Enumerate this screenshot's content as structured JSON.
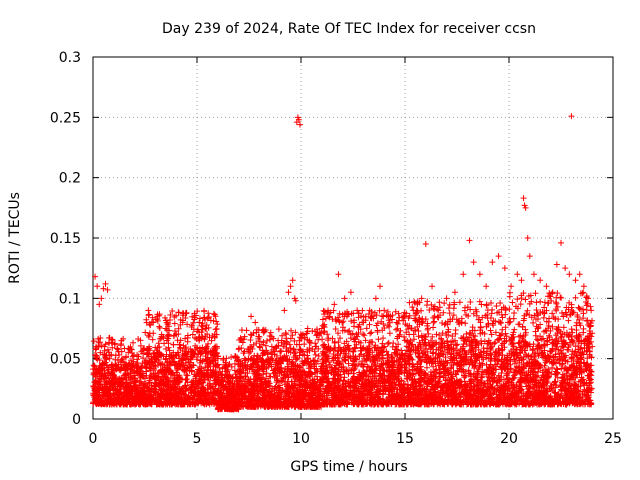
{
  "chart_data": {
    "type": "scatter",
    "title": "Day 239 of 2024, Rate Of TEC Index for receiver ccsn",
    "xlabel": "GPS time / hours",
    "ylabel": "ROTI / TECUs",
    "xlim": [
      0,
      25
    ],
    "ylim": [
      0,
      0.3
    ],
    "x_ticks": [
      "0",
      "5",
      "10",
      "15",
      "20",
      "25"
    ],
    "y_ticks": [
      "0",
      "0.05",
      "0.1",
      "0.15",
      "0.2",
      "0.25",
      "0.3"
    ],
    "grid": true,
    "legend": "none",
    "marker": "plus",
    "color": "#ff0000",
    "series": [
      {
        "points": [
          [
            0.1,
            0.118
          ],
          [
            0.2,
            0.11
          ],
          [
            0.3,
            0.095
          ],
          [
            0.4,
            0.1
          ],
          [
            0.5,
            0.108
          ],
          [
            0.6,
            0.112
          ],
          [
            0.7,
            0.107
          ],
          [
            0.15,
            0.06
          ],
          [
            0.35,
            0.055
          ],
          [
            0.55,
            0.06
          ],
          [
            0.8,
            0.05
          ],
          [
            1.2,
            0.042
          ],
          [
            1.6,
            0.045
          ],
          [
            2.0,
            0.04
          ],
          [
            2.4,
            0.038
          ],
          [
            2.7,
            0.06
          ],
          [
            2.9,
            0.08
          ],
          [
            3.1,
            0.085
          ],
          [
            3.3,
            0.07
          ],
          [
            3.5,
            0.075
          ],
          [
            3.7,
            0.082
          ],
          [
            4.0,
            0.07
          ],
          [
            4.2,
            0.078
          ],
          [
            4.5,
            0.088
          ],
          [
            4.8,
            0.07
          ],
          [
            5.1,
            0.065
          ],
          [
            5.4,
            0.075
          ],
          [
            5.7,
            0.065
          ],
          [
            6.0,
            0.05
          ],
          [
            6.3,
            0.045
          ],
          [
            6.6,
            0.035
          ],
          [
            7.0,
            0.045
          ],
          [
            7.3,
            0.05
          ],
          [
            7.6,
            0.085
          ],
          [
            7.8,
            0.08
          ],
          [
            8.0,
            0.06
          ],
          [
            8.3,
            0.055
          ],
          [
            8.6,
            0.06
          ],
          [
            8.9,
            0.065
          ],
          [
            9.2,
            0.09
          ],
          [
            9.4,
            0.105
          ],
          [
            9.5,
            0.11
          ],
          [
            9.6,
            0.115
          ],
          [
            9.7,
            0.1
          ],
          [
            9.75,
            0.098
          ],
          [
            9.8,
            0.246
          ],
          [
            9.85,
            0.25
          ],
          [
            9.9,
            0.248
          ],
          [
            9.95,
            0.244
          ],
          [
            10.1,
            0.07
          ],
          [
            10.4,
            0.065
          ],
          [
            10.7,
            0.06
          ],
          [
            11.0,
            0.075
          ],
          [
            11.3,
            0.09
          ],
          [
            11.6,
            0.095
          ],
          [
            11.8,
            0.12
          ],
          [
            12.1,
            0.1
          ],
          [
            12.4,
            0.105
          ],
          [
            12.7,
            0.09
          ],
          [
            13.0,
            0.08
          ],
          [
            13.3,
            0.09
          ],
          [
            13.6,
            0.1
          ],
          [
            13.8,
            0.11
          ],
          [
            14.0,
            0.09
          ],
          [
            14.3,
            0.085
          ],
          [
            14.6,
            0.08
          ],
          [
            15.0,
            0.085
          ],
          [
            15.4,
            0.09
          ],
          [
            15.8,
            0.1
          ],
          [
            16.0,
            0.145
          ],
          [
            16.3,
            0.11
          ],
          [
            16.6,
            0.09
          ],
          [
            17.0,
            0.1
          ],
          [
            17.4,
            0.105
          ],
          [
            17.8,
            0.12
          ],
          [
            18.1,
            0.148
          ],
          [
            18.3,
            0.13
          ],
          [
            18.6,
            0.12
          ],
          [
            18.9,
            0.11
          ],
          [
            19.2,
            0.13
          ],
          [
            19.5,
            0.135
          ],
          [
            19.8,
            0.125
          ],
          [
            20.1,
            0.11
          ],
          [
            20.4,
            0.12
          ],
          [
            20.6,
            0.115
          ],
          [
            20.7,
            0.183
          ],
          [
            20.75,
            0.177
          ],
          [
            20.8,
            0.175
          ],
          [
            20.9,
            0.15
          ],
          [
            21.0,
            0.135
          ],
          [
            21.2,
            0.12
          ],
          [
            21.5,
            0.115
          ],
          [
            21.8,
            0.11
          ],
          [
            22.1,
            0.105
          ],
          [
            22.3,
            0.128
          ],
          [
            22.5,
            0.146
          ],
          [
            22.7,
            0.125
          ],
          [
            22.9,
            0.12
          ],
          [
            23.0,
            0.251
          ],
          [
            23.2,
            0.115
          ],
          [
            23.4,
            0.12
          ],
          [
            23.6,
            0.11
          ],
          [
            23.8,
            0.1
          ],
          [
            23.95,
            0.09
          ]
        ]
      }
    ],
    "dense_band": {
      "x_range": [
        0,
        24
      ],
      "segments": [
        {
          "x": [
            0,
            2.5
          ],
          "low": 0.012,
          "high": 0.045
        },
        {
          "x": [
            2.5,
            6.0
          ],
          "low": 0.012,
          "high": 0.06
        },
        {
          "x": [
            6.0,
            7.0
          ],
          "low": 0.008,
          "high": 0.035
        },
        {
          "x": [
            7.0,
            11.0
          ],
          "low": 0.01,
          "high": 0.05
        },
        {
          "x": [
            11.0,
            15.0
          ],
          "low": 0.012,
          "high": 0.06
        },
        {
          "x": [
            15.0,
            20.0
          ],
          "low": 0.012,
          "high": 0.065
        },
        {
          "x": [
            20.0,
            24.0
          ],
          "low": 0.012,
          "high": 0.07
        }
      ]
    }
  }
}
